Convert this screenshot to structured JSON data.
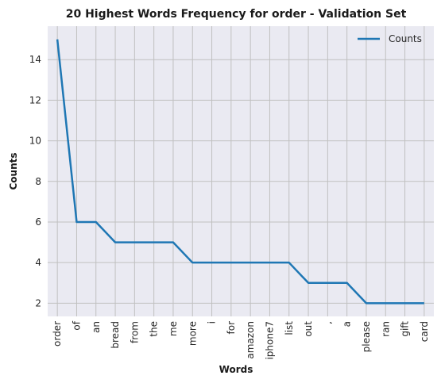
{
  "chart_data": {
    "type": "line",
    "title": "20 Highest Words Frequency for order - Validation Set",
    "xlabel": "Words",
    "ylabel": "Counts",
    "categories": [
      "order",
      "of",
      "an",
      "bread",
      "from",
      "the",
      "me",
      "more",
      "i",
      "for",
      "amazon",
      "iphone7",
      "list",
      "out",
      ",",
      "a",
      "please",
      "ran",
      "gift",
      "card"
    ],
    "series": [
      {
        "name": "Counts",
        "color": "#1f77b4",
        "values": [
          15,
          6,
          6,
          5,
          5,
          5,
          5,
          4,
          4,
          4,
          4,
          4,
          4,
          3,
          3,
          3,
          2,
          2,
          2,
          2
        ]
      }
    ],
    "ylim": [
      1.35,
      15.65
    ],
    "yticks": [
      2,
      4,
      6,
      8,
      10,
      12,
      14
    ],
    "grid": true,
    "legend": "top-right",
    "background": "#eaeaf2",
    "grid_color": "#c0c0c0"
  }
}
